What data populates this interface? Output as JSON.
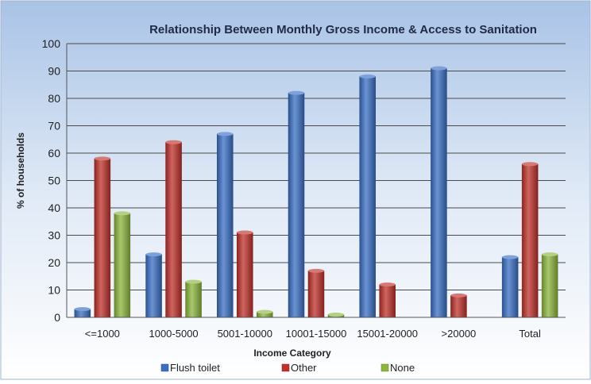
{
  "chart_data": {
    "type": "bar",
    "title": "Relationship Between Monthly Gross Income & Access to Sanitation",
    "xlabel": "Income Category",
    "ylabel": "% of households",
    "ylim": [
      0,
      100
    ],
    "yticks": [
      0,
      10,
      20,
      30,
      40,
      50,
      60,
      70,
      80,
      90,
      100
    ],
    "grid": true,
    "legend_position": "bottom",
    "categories": [
      "<=1000",
      "1000-5000",
      "5001-10000",
      "10001-15000",
      "15001-20000",
      ">20000",
      "Total"
    ],
    "series": [
      {
        "name": "Flush toilet",
        "color": "#3a6fc4",
        "values": [
          3,
          23,
          67,
          82,
          88,
          91,
          22
        ]
      },
      {
        "name": "Other",
        "color": "#c0312b",
        "values": [
          58,
          64,
          31,
          17,
          12,
          8,
          56
        ]
      },
      {
        "name": "None",
        "color": "#8cb63c",
        "values": [
          38,
          13,
          2,
          1,
          0,
          0,
          23
        ]
      }
    ]
  }
}
